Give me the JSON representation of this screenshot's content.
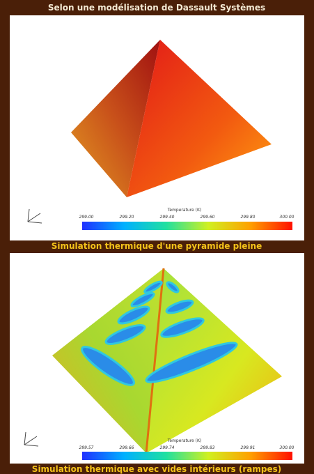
{
  "header": {
    "title": "Selon une modélisation de Dassault Systèmes"
  },
  "panels": [
    {
      "legend_title": "Temperature (K)",
      "ticks": [
        "299.00",
        "299.20",
        "299.40",
        "299.60",
        "299.80",
        "300.00"
      ],
      "caption": "Simulation thermique d'une pyramide pleine"
    },
    {
      "legend_title": "Temperature (K)",
      "ticks": [
        "299.57",
        "299.66",
        "299.74",
        "299.83",
        "299.91",
        "300.00"
      ],
      "caption": "Simulation thermique avec vides intérieurs (rampes)"
    }
  ]
}
